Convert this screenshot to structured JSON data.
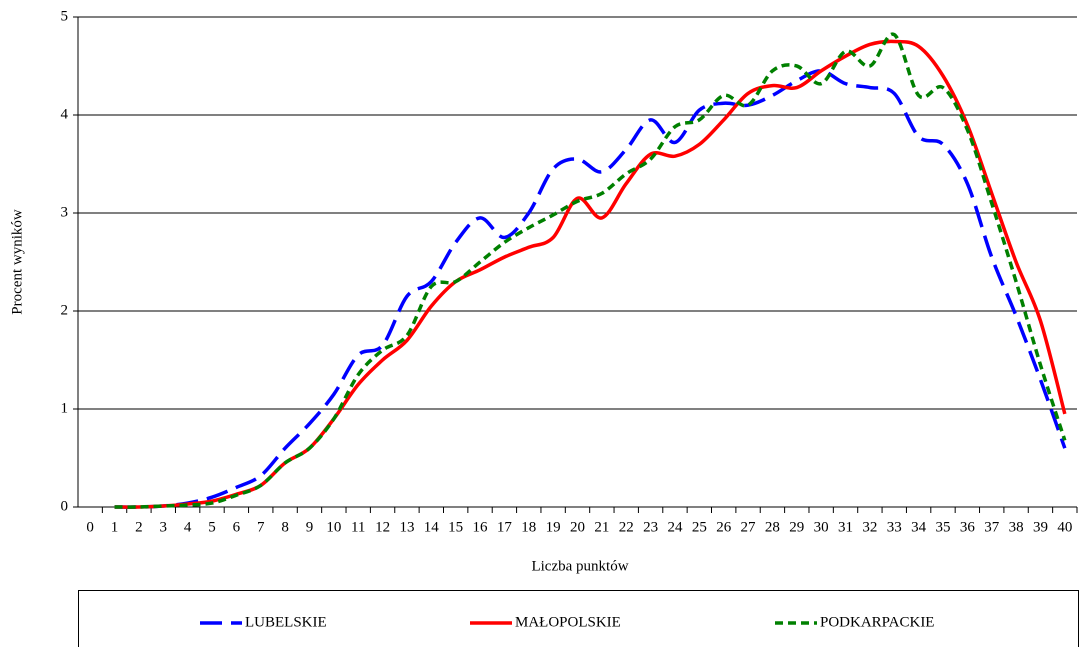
{
  "chart_data": {
    "type": "line",
    "x_label": "Liczba punktów",
    "y_label": "Procent wyników",
    "categories": [
      "0",
      "1",
      "2",
      "3",
      "4",
      "5",
      "6",
      "7",
      "8",
      "9",
      "10",
      "11",
      "12",
      "13",
      "14",
      "15",
      "16",
      "17",
      "18",
      "19",
      "20",
      "21",
      "22",
      "23",
      "24",
      "25",
      "26",
      "27",
      "28",
      "29",
      "30",
      "31",
      "32",
      "33",
      "34",
      "35",
      "36",
      "37",
      "38",
      "39",
      "40"
    ],
    "series": [
      {
        "name": "LUBELSKIE",
        "color": "#0000ff",
        "dash": "long-dash",
        "values": [
          null,
          0,
          0,
          0.01,
          0.04,
          0.1,
          0.2,
          0.32,
          0.6,
          0.85,
          1.15,
          1.55,
          1.65,
          2.15,
          2.3,
          2.7,
          2.95,
          2.75,
          3.0,
          3.45,
          3.55,
          3.42,
          3.65,
          3.95,
          3.72,
          4.05,
          4.12,
          4.1,
          4.2,
          4.35,
          4.45,
          4.32,
          4.28,
          4.22,
          3.78,
          3.7,
          3.3,
          2.55,
          1.95,
          1.3,
          0.6
        ]
      },
      {
        "name": "MAŁOPOLSKIE",
        "color": "#ff0000",
        "dash": "solid",
        "values": [
          null,
          0,
          0,
          0.01,
          0.03,
          0.06,
          0.13,
          0.22,
          0.45,
          0.6,
          0.9,
          1.25,
          1.5,
          1.7,
          2.05,
          2.3,
          2.42,
          2.55,
          2.65,
          2.75,
          3.15,
          2.95,
          3.3,
          3.6,
          3.58,
          3.7,
          3.95,
          4.22,
          4.3,
          4.28,
          4.45,
          4.6,
          4.72,
          4.75,
          4.7,
          4.4,
          3.9,
          3.2,
          2.5,
          1.9,
          0.95
        ]
      },
      {
        "name": "PODKARPACKIE",
        "color": "#008000",
        "dash": "short-dash",
        "values": [
          null,
          0,
          0,
          0.01,
          0.02,
          0.04,
          0.12,
          0.22,
          0.45,
          0.6,
          0.9,
          1.35,
          1.6,
          1.75,
          2.25,
          2.3,
          2.5,
          2.7,
          2.85,
          2.98,
          3.12,
          3.2,
          3.4,
          3.55,
          3.88,
          3.95,
          4.2,
          4.1,
          4.45,
          4.5,
          4.32,
          4.65,
          4.5,
          4.82,
          4.2,
          4.28,
          3.85,
          3.1,
          2.3,
          1.45,
          0.68
        ]
      }
    ],
    "ylim": [
      0,
      5
    ],
    "yticks": [
      0,
      1,
      2,
      3,
      4,
      5
    ],
    "grid": true,
    "legend": "bottom"
  }
}
